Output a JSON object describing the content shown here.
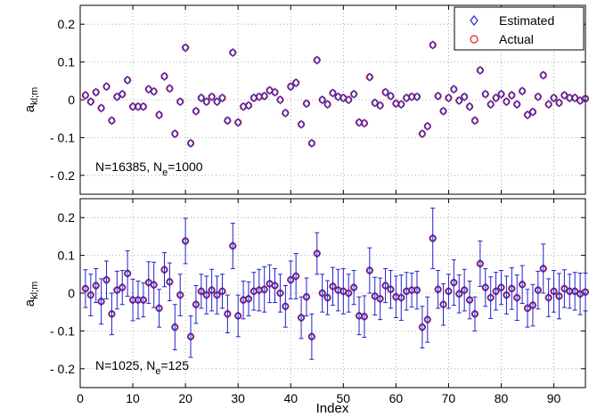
{
  "chart_data": [
    {
      "type": "scatter",
      "panel": "top",
      "annotation_main": "N=16385, N",
      "annotation_sub": "e",
      "annotation_tail": "=1000",
      "ylabel_main": "a",
      "ylabel_sub": "kl;m",
      "xlabel": "",
      "xlim": [
        0,
        96
      ],
      "ylim": [
        -0.25,
        0.25
      ],
      "yticks": [
        -0.2,
        -0.1,
        0,
        0.1,
        0.2
      ],
      "ytick_labels": [
        "- 0.2",
        "- 0.1",
        "0",
        "0.1",
        "0.2"
      ],
      "xticks": [
        0,
        10,
        20,
        30,
        40,
        50,
        60,
        70,
        80,
        90
      ],
      "xtick_labels": [],
      "grid": true,
      "legend_position": "top-right",
      "legend": [
        "Estimated",
        "Actual"
      ],
      "series": [
        {
          "name": "Estimated",
          "marker": "diamond",
          "color": "#2222cc"
        },
        {
          "name": "Actual",
          "marker": "circle",
          "color": "#e02020"
        }
      ],
      "x": [
        1,
        2,
        3,
        4,
        5,
        6,
        7,
        8,
        9,
        10,
        11,
        12,
        13,
        14,
        15,
        16,
        17,
        18,
        19,
        20,
        21,
        22,
        23,
        24,
        25,
        26,
        27,
        28,
        29,
        30,
        31,
        32,
        33,
        34,
        35,
        36,
        37,
        38,
        39,
        40,
        41,
        42,
        43,
        44,
        45,
        46,
        47,
        48,
        49,
        50,
        51,
        52,
        53,
        54,
        55,
        56,
        57,
        58,
        59,
        60,
        61,
        62,
        63,
        64,
        65,
        66,
        67,
        68,
        69,
        70,
        71,
        72,
        73,
        74,
        75,
        76,
        77,
        78,
        79,
        80,
        81,
        82,
        83,
        84,
        85,
        86,
        87,
        88,
        89,
        90,
        91,
        92,
        93,
        94,
        95,
        96
      ],
      "values": [
        0.012,
        -0.005,
        0.02,
        -0.022,
        0.035,
        -0.055,
        0.008,
        0.015,
        0.052,
        -0.018,
        -0.018,
        -0.018,
        0.028,
        0.022,
        -0.04,
        0.062,
        0.03,
        -0.09,
        -0.005,
        0.138,
        -0.115,
        -0.03,
        0.005,
        -0.005,
        0.008,
        -0.005,
        0.005,
        -0.055,
        0.125,
        -0.06,
        -0.018,
        -0.015,
        0.005,
        0.008,
        0.01,
        0.025,
        0.02,
        0.0,
        -0.035,
        0.035,
        0.045,
        -0.065,
        -0.01,
        -0.115,
        0.105,
        0.0,
        -0.012,
        0.018,
        0.008,
        0.005,
        0.0,
        0.015,
        -0.06,
        -0.062,
        0.06,
        -0.008,
        -0.015,
        0.02,
        0.01,
        -0.01,
        -0.012,
        0.005,
        0.008,
        0.008,
        -0.09,
        -0.07,
        0.145,
        0.01,
        -0.03,
        0.005,
        0.028,
        -0.002,
        0.008,
        -0.018,
        -0.055,
        0.078,
        0.015,
        -0.012,
        0.005,
        0.015,
        -0.005,
        0.012,
        -0.012,
        0.023,
        -0.04,
        -0.032,
        0.008,
        0.065,
        -0.012,
        0.005,
        -0.008,
        0.012,
        0.005,
        0.005,
        -0.002,
        0.003
      ]
    },
    {
      "type": "scatter",
      "panel": "bottom",
      "annotation_main": "N=1025, N",
      "annotation_sub": "e",
      "annotation_tail": "=125",
      "ylabel_main": "a",
      "ylabel_sub": "kl;m",
      "xlabel": "Index",
      "xlim": [
        0,
        96
      ],
      "ylim": [
        -0.25,
        0.25
      ],
      "yticks": [
        -0.2,
        -0.1,
        0,
        0.1,
        0.2
      ],
      "ytick_labels": [
        "- 0.2",
        "- 0.1",
        "0",
        "0.1",
        "0.2"
      ],
      "xticks": [
        0,
        10,
        20,
        30,
        40,
        50,
        60,
        70,
        80,
        90
      ],
      "xtick_labels": [
        "0",
        "10",
        "20",
        "30",
        "40",
        "50",
        "60",
        "70",
        "80",
        "90"
      ],
      "grid": true,
      "series": [
        {
          "name": "Estimated",
          "marker": "diamond",
          "color": "#2222cc",
          "error_bars": true
        },
        {
          "name": "Actual",
          "marker": "circle",
          "color": "#e02020"
        }
      ],
      "x": [
        1,
        2,
        3,
        4,
        5,
        6,
        7,
        8,
        9,
        10,
        11,
        12,
        13,
        14,
        15,
        16,
        17,
        18,
        19,
        20,
        21,
        22,
        23,
        24,
        25,
        26,
        27,
        28,
        29,
        30,
        31,
        32,
        33,
        34,
        35,
        36,
        37,
        38,
        39,
        40,
        41,
        42,
        43,
        44,
        45,
        46,
        47,
        48,
        49,
        50,
        51,
        52,
        53,
        54,
        55,
        56,
        57,
        58,
        59,
        60,
        61,
        62,
        63,
        64,
        65,
        66,
        67,
        68,
        69,
        70,
        71,
        72,
        73,
        74,
        75,
        76,
        77,
        78,
        79,
        80,
        81,
        82,
        83,
        84,
        85,
        86,
        87,
        88,
        89,
        90,
        91,
        92,
        93,
        94,
        95,
        96
      ],
      "values": [
        0.012,
        -0.005,
        0.02,
        -0.022,
        0.035,
        -0.055,
        0.008,
        0.015,
        0.052,
        -0.018,
        -0.018,
        -0.018,
        0.028,
        0.022,
        -0.04,
        0.062,
        0.03,
        -0.09,
        -0.005,
        0.138,
        -0.115,
        -0.03,
        0.005,
        -0.005,
        0.008,
        -0.005,
        0.005,
        -0.055,
        0.125,
        -0.06,
        -0.018,
        -0.015,
        0.005,
        0.008,
        0.01,
        0.025,
        0.02,
        0.0,
        -0.035,
        0.035,
        0.045,
        -0.065,
        -0.01,
        -0.115,
        0.105,
        0.0,
        -0.012,
        0.018,
        0.008,
        0.005,
        0.0,
        0.015,
        -0.06,
        -0.062,
        0.06,
        -0.008,
        -0.015,
        0.02,
        0.01,
        -0.01,
        -0.012,
        0.005,
        0.008,
        0.008,
        -0.09,
        -0.07,
        0.145,
        0.01,
        -0.03,
        0.005,
        0.028,
        -0.002,
        0.008,
        -0.018,
        -0.055,
        0.078,
        0.015,
        -0.012,
        0.005,
        0.015,
        -0.005,
        0.012,
        -0.012,
        0.023,
        -0.04,
        -0.032,
        0.008,
        0.065,
        -0.012,
        0.005,
        -0.008,
        0.012,
        0.005,
        0.005,
        -0.002,
        0.003
      ],
      "errors": [
        0.05,
        0.055,
        0.045,
        0.06,
        0.05,
        0.055,
        0.05,
        0.045,
        0.06,
        0.055,
        0.05,
        0.045,
        0.055,
        0.06,
        0.05,
        0.045,
        0.05,
        0.06,
        0.055,
        0.06,
        0.055,
        0.05,
        0.045,
        0.05,
        0.055,
        0.05,
        0.045,
        0.05,
        0.06,
        0.055,
        0.05,
        0.045,
        0.05,
        0.055,
        0.06,
        0.05,
        0.045,
        0.05,
        0.055,
        0.05,
        0.06,
        0.055,
        0.05,
        0.06,
        0.055,
        0.05,
        0.045,
        0.05,
        0.055,
        0.06,
        0.05,
        0.045,
        0.05,
        0.055,
        0.06,
        0.05,
        0.055,
        0.045,
        0.05,
        0.055,
        0.06,
        0.05,
        0.045,
        0.05,
        0.055,
        0.06,
        0.08,
        0.05,
        0.055,
        0.045,
        0.06,
        0.05,
        0.055,
        0.05,
        0.045,
        0.06,
        0.05,
        0.055,
        0.05,
        0.045,
        0.05,
        0.055,
        0.06,
        0.05,
        0.05,
        0.055,
        0.05,
        0.065,
        0.05,
        0.055,
        0.06,
        0.05,
        0.045,
        0.05,
        0.055,
        0.05
      ]
    }
  ],
  "colors": {
    "estimated": "#2222cc",
    "actual": "#e02020",
    "axes": "#000000",
    "grid": "#999999"
  }
}
